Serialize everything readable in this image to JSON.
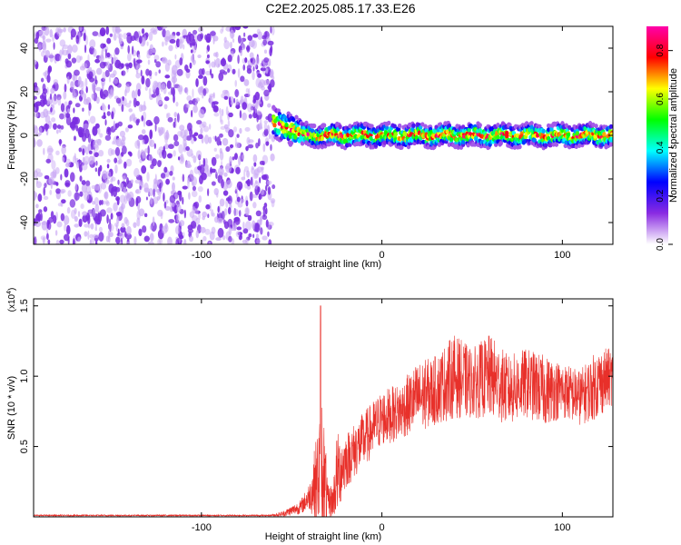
{
  "title": "C2E2.2025.085.17.33.E26",
  "chart_data": [
    {
      "type": "heatmap",
      "xlabel": "Height of straight line (km)",
      "ylabel": "Frequency (Hz)",
      "xlim": [
        -193,
        128
      ],
      "ylim": [
        -50,
        50
      ],
      "xticks": [
        -100,
        0,
        100
      ],
      "xtick_labels": [
        "-100",
        "0",
        "100"
      ],
      "yticks": [
        -40,
        -20,
        0,
        20,
        40
      ],
      "ytick_labels": [
        "-40",
        "-20",
        "0",
        "20",
        "40"
      ],
      "noise_region_x": [
        -193,
        -60
      ],
      "signal_band": {
        "x_start": -60,
        "x_end": 128,
        "center_hz": 0,
        "half_width_hz": 5
      },
      "colorbar": {
        "label": "Normalized spectral amplitude",
        "range": [
          0,
          0.9
        ],
        "ticks": [
          0.0,
          0.2,
          0.4,
          0.6,
          0.8
        ],
        "tick_labels": [
          "0.0",
          "0.2",
          "0.4",
          "0.6",
          "0.8"
        ],
        "colors": [
          "#ffffff",
          "#8a2be2",
          "#0000ff",
          "#00ffff",
          "#00ff00",
          "#ffff00",
          "#ff0000",
          "#ff00aa"
        ]
      },
      "grid": false
    },
    {
      "type": "line",
      "xlabel": "Height of straight line (km)",
      "ylabel": "SNR (10 * v/v)",
      "exponent_label": "(x10",
      "exponent_power": "4",
      "exponent_close": ")",
      "xlim": [
        -193,
        128
      ],
      "ylim": [
        0,
        1.55
      ],
      "xticks": [
        -100,
        0,
        100
      ],
      "xtick_labels": [
        "-100",
        "0",
        "100"
      ],
      "yticks": [
        0.5,
        1.0,
        1.5
      ],
      "ytick_labels": [
        "0.5",
        "1.0",
        "1.5"
      ],
      "color": "#e8302a",
      "envelope": {
        "x": [
          -193,
          -62,
          -55,
          -45,
          -40,
          -35,
          -33,
          -30,
          -27,
          -25,
          -20,
          -10,
          0,
          10,
          20,
          30,
          40,
          50,
          60,
          70,
          80,
          90,
          100,
          110,
          120,
          128
        ],
        "mean": [
          0.01,
          0.01,
          0.02,
          0.07,
          0.15,
          0.3,
          0.35,
          0.1,
          0.12,
          0.3,
          0.4,
          0.55,
          0.7,
          0.75,
          0.85,
          0.9,
          1.0,
          0.95,
          1.0,
          0.9,
          0.95,
          0.9,
          0.9,
          0.85,
          0.95,
          1.0
        ],
        "spread": [
          0.005,
          0.005,
          0.02,
          0.05,
          0.1,
          0.4,
          0.6,
          0.12,
          0.12,
          0.3,
          0.2,
          0.2,
          0.2,
          0.2,
          0.25,
          0.25,
          0.3,
          0.25,
          0.3,
          0.25,
          0.25,
          0.25,
          0.2,
          0.2,
          0.25,
          0.2
        ]
      },
      "peak": {
        "x": -34,
        "y": 1.5
      },
      "grid": false
    }
  ]
}
